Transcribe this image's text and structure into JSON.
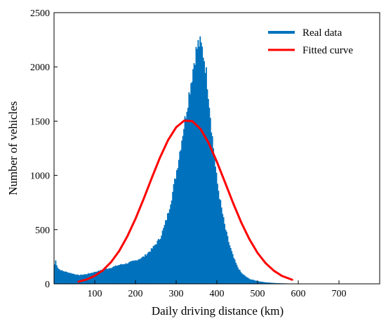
{
  "chart_data": {
    "type": "bar",
    "title": "",
    "xlabel": "Daily driving distance (km)",
    "ylabel": "Number of vehicles",
    "xlim": [
      0,
      800
    ],
    "ylim": [
      0,
      2500
    ],
    "xticks": [
      100,
      200,
      300,
      400,
      500,
      600,
      700
    ],
    "yticks": [
      0,
      500,
      1000,
      1500,
      2000,
      2500
    ],
    "grid": false,
    "legend_position": "top-right",
    "series": [
      {
        "name": "Real data",
        "type": "histogram",
        "color": "#0072BD",
        "bin_width": 2.5,
        "profile_x": [
          0,
          2,
          5,
          10,
          20,
          40,
          60,
          80,
          100,
          120,
          140,
          160,
          180,
          200,
          220,
          240,
          260,
          270,
          280,
          290,
          300,
          310,
          320,
          330,
          340,
          345,
          350,
          355,
          360,
          365,
          370,
          375,
          380,
          385,
          390,
          395,
          400,
          410,
          420,
          430,
          440,
          450,
          460,
          470,
          480,
          500,
          520,
          540,
          560,
          580,
          600,
          650,
          700,
          800
        ],
        "profile_y": [
          60,
          250,
          190,
          140,
          120,
          100,
          80,
          90,
          110,
          130,
          150,
          175,
          190,
          215,
          250,
          320,
          420,
          520,
          650,
          820,
          1020,
          1250,
          1480,
          1720,
          1950,
          2080,
          2160,
          2220,
          2200,
          2150,
          2050,
          1900,
          1720,
          1500,
          1300,
          1120,
          950,
          720,
          520,
          370,
          250,
          160,
          100,
          70,
          45,
          25,
          14,
          8,
          5,
          3,
          2,
          1,
          0,
          0
        ]
      },
      {
        "name": "Fitted curve",
        "type": "line",
        "color": "#FF0000",
        "x": [
          60,
          80,
          100,
          120,
          140,
          160,
          180,
          200,
          220,
          240,
          260,
          280,
          300,
          320,
          340,
          360,
          380,
          400,
          420,
          440,
          460,
          480,
          500,
          520,
          540,
          560,
          585
        ],
        "y": [
          20,
          40,
          74,
          125,
          200,
          303,
          437,
          599,
          782,
          975,
          1162,
          1324,
          1443,
          1505,
          1499,
          1427,
          1297,
          1126,
          936,
          744,
          565,
          411,
          285,
          190,
          121,
          73,
          38
        ]
      }
    ]
  }
}
